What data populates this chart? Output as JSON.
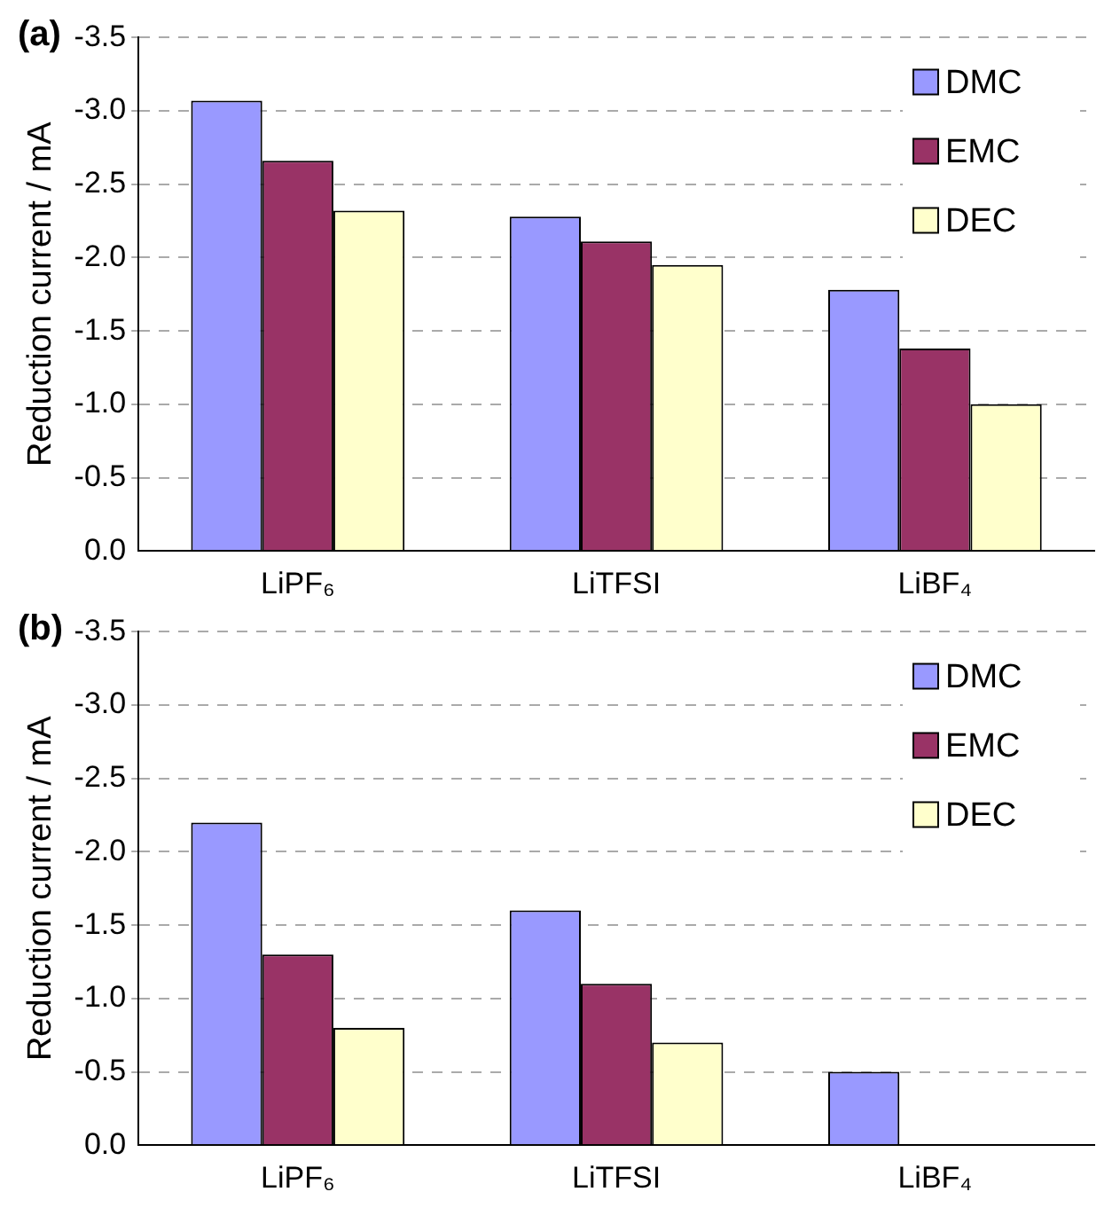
{
  "chart_data": [
    {
      "type": "bar",
      "annotations": [
        "(a)"
      ],
      "ylabel": "Reduction current / mA",
      "categories": [
        "LiPF₆",
        "LiTFSI",
        "LiBF₄"
      ],
      "series": [
        {
          "name": "DMC",
          "color": "#9999ff",
          "values": [
            -3.07,
            -2.28,
            -1.78
          ]
        },
        {
          "name": "EMC",
          "color": "#993366",
          "values": [
            -2.66,
            -2.11,
            -1.38
          ]
        },
        {
          "name": "DEC",
          "color": "#ffffcc",
          "values": [
            -2.32,
            -1.95,
            -1.0
          ]
        }
      ],
      "ylim": [
        0,
        -3.5
      ],
      "yticks": [
        {
          "value": 0,
          "label": "0.0"
        },
        {
          "value": -0.5,
          "label": "-0.5"
        },
        {
          "value": -1,
          "label": "-1.0"
        },
        {
          "value": -1.5,
          "label": "-1.5"
        },
        {
          "value": -2,
          "label": "-2.0"
        },
        {
          "value": -2.5,
          "label": "-2.5"
        },
        {
          "value": -3,
          "label": "-3.0"
        },
        {
          "value": -3.5,
          "label": "-3.5"
        }
      ],
      "grid": "y",
      "legend": "top right"
    },
    {
      "type": "bar",
      "annotations": [
        "(b)"
      ],
      "ylabel": "Reduction current / mA",
      "categories": [
        "LiPF₆",
        "LiTFSI",
        "LiBF₄"
      ],
      "series": [
        {
          "name": "DMC",
          "color": "#9999ff",
          "values": [
            -2.2,
            -1.6,
            -0.5
          ]
        },
        {
          "name": "EMC",
          "color": "#993366",
          "values": [
            -1.3,
            -1.1,
            0
          ]
        },
        {
          "name": "DEC",
          "color": "#ffffcc",
          "values": [
            -0.8,
            -0.7,
            0
          ]
        }
      ],
      "ylim": [
        0,
        -3.5
      ],
      "yticks": [
        {
          "value": 0,
          "label": "0.0"
        },
        {
          "value": -0.5,
          "label": "-0.5"
        },
        {
          "value": -1,
          "label": "-1.0"
        },
        {
          "value": -1.5,
          "label": "-1.5"
        },
        {
          "value": -2,
          "label": "-2.0"
        },
        {
          "value": -2.5,
          "label": "-2.5"
        },
        {
          "value": -3,
          "label": "-3.0"
        },
        {
          "value": -3.5,
          "label": "-3.5"
        }
      ],
      "grid": "y",
      "legend": "top right"
    }
  ]
}
